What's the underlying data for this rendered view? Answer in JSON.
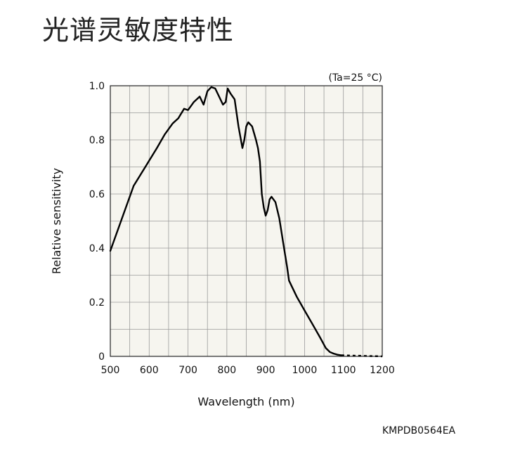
{
  "page": {
    "title": "光谱灵敏度特性",
    "figure_code": "KMPDB0564EA"
  },
  "chart_data": {
    "type": "line",
    "title": "",
    "annotation": "(Ta=25 °C)",
    "xlabel": "Wavelength (nm)",
    "ylabel": "Relative sensitivity",
    "xlim": [
      500,
      1200
    ],
    "ylim": [
      0,
      1.0
    ],
    "xticks": [
      500,
      600,
      700,
      800,
      900,
      1000,
      1100,
      1200
    ],
    "xtick_labels": [
      "500",
      "600",
      "700",
      "800",
      "900",
      "1000",
      "1100",
      "1200"
    ],
    "yticks": [
      0,
      0.2,
      0.4,
      0.6,
      0.8,
      1.0
    ],
    "ytick_labels": [
      "0",
      "0.2",
      "0.4",
      "0.6",
      "0.8",
      "1.0"
    ],
    "grid": true,
    "plot_background": "#f6f5ef",
    "line_color": "#000000",
    "series": [
      {
        "x": [
          500,
          530,
          560,
          590,
          620,
          640,
          660,
          675,
          690,
          700,
          715,
          730,
          740,
          750,
          760,
          770,
          780,
          790,
          797,
          802,
          810,
          820,
          830,
          840,
          845,
          850,
          855,
          865,
          875,
          880,
          885,
          890,
          895,
          900,
          905,
          910,
          915,
          925,
          935,
          945,
          955,
          960,
          980,
          1000,
          1020,
          1040,
          1055,
          1065,
          1075,
          1085,
          1095
        ],
        "y": [
          0.39,
          0.51,
          0.63,
          0.7,
          0.77,
          0.82,
          0.86,
          0.88,
          0.915,
          0.91,
          0.94,
          0.96,
          0.93,
          0.98,
          0.995,
          0.99,
          0.96,
          0.93,
          0.94,
          0.99,
          0.97,
          0.95,
          0.85,
          0.77,
          0.8,
          0.85,
          0.865,
          0.85,
          0.8,
          0.77,
          0.72,
          0.6,
          0.55,
          0.52,
          0.54,
          0.58,
          0.59,
          0.57,
          0.51,
          0.42,
          0.33,
          0.28,
          0.22,
          0.17,
          0.12,
          0.07,
          0.03,
          0.016,
          0.01,
          0.006,
          0.004
        ]
      },
      {
        "x": [
          1095,
          1200
        ],
        "y": [
          0.004,
          0.0
        ],
        "style": "dotted"
      }
    ]
  }
}
